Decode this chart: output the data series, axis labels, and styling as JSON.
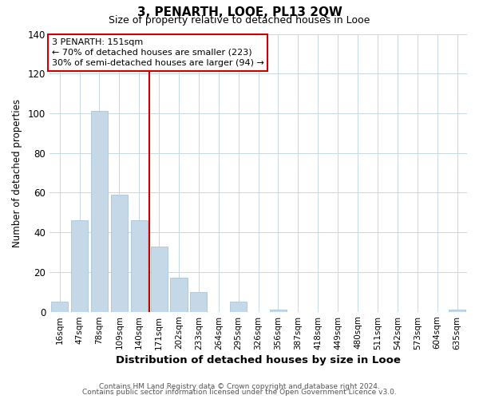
{
  "title": "3, PENARTH, LOOE, PL13 2QW",
  "subtitle": "Size of property relative to detached houses in Looe",
  "xlabel": "Distribution of detached houses by size in Looe",
  "ylabel": "Number of detached properties",
  "bar_color": "#c5d8e8",
  "bar_edge_color": "#a8c4d8",
  "categories": [
    "16sqm",
    "47sqm",
    "78sqm",
    "109sqm",
    "140sqm",
    "171sqm",
    "202sqm",
    "233sqm",
    "264sqm",
    "295sqm",
    "326sqm",
    "356sqm",
    "387sqm",
    "418sqm",
    "449sqm",
    "480sqm",
    "511sqm",
    "542sqm",
    "573sqm",
    "604sqm",
    "635sqm"
  ],
  "values": [
    5,
    46,
    101,
    59,
    46,
    33,
    17,
    10,
    0,
    5,
    0,
    1,
    0,
    0,
    0,
    0,
    0,
    0,
    0,
    0,
    1
  ],
  "ylim": [
    0,
    140
  ],
  "yticks": [
    0,
    20,
    40,
    60,
    80,
    100,
    120,
    140
  ],
  "property_line_index": 4,
  "property_line_color": "#cc0000",
  "annotation_title": "3 PENARTH: 151sqm",
  "annotation_line1": "← 70% of detached houses are smaller (223)",
  "annotation_line2": "30% of semi-detached houses are larger (94) →",
  "annotation_box_color": "#ffffff",
  "annotation_box_edge": "#cc0000",
  "footer_line1": "Contains HM Land Registry data © Crown copyright and database right 2024.",
  "footer_line2": "Contains public sector information licensed under the Open Government Licence v3.0.",
  "background_color": "#ffffff",
  "grid_color": "#c8d8e4"
}
